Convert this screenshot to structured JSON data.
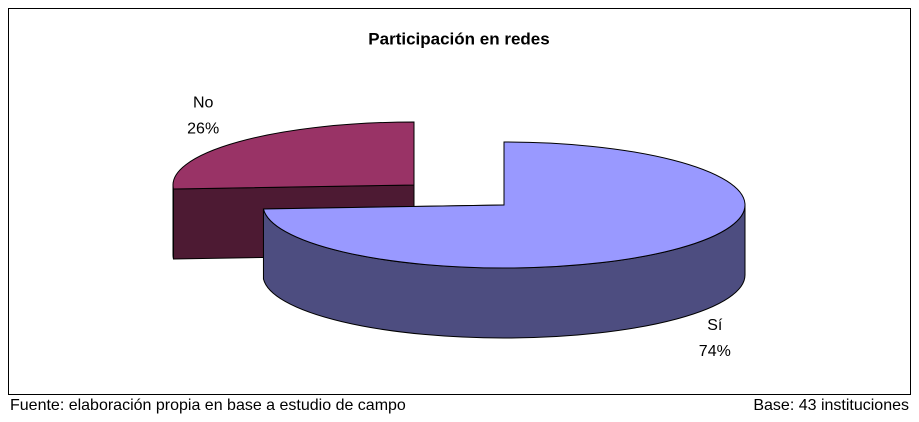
{
  "chart_data": {
    "type": "pie3d",
    "title": "Participación en redes",
    "categories": [
      "Sí",
      "No"
    ],
    "values": [
      74,
      26
    ],
    "value_labels": [
      "74%",
      "26%"
    ],
    "colors": [
      "#9999ff",
      "#993366"
    ],
    "exploded": [
      false,
      true
    ],
    "source": "Fuente: elaboración propia en base a estudio de campo",
    "base": "Base: 43 instituciones"
  }
}
